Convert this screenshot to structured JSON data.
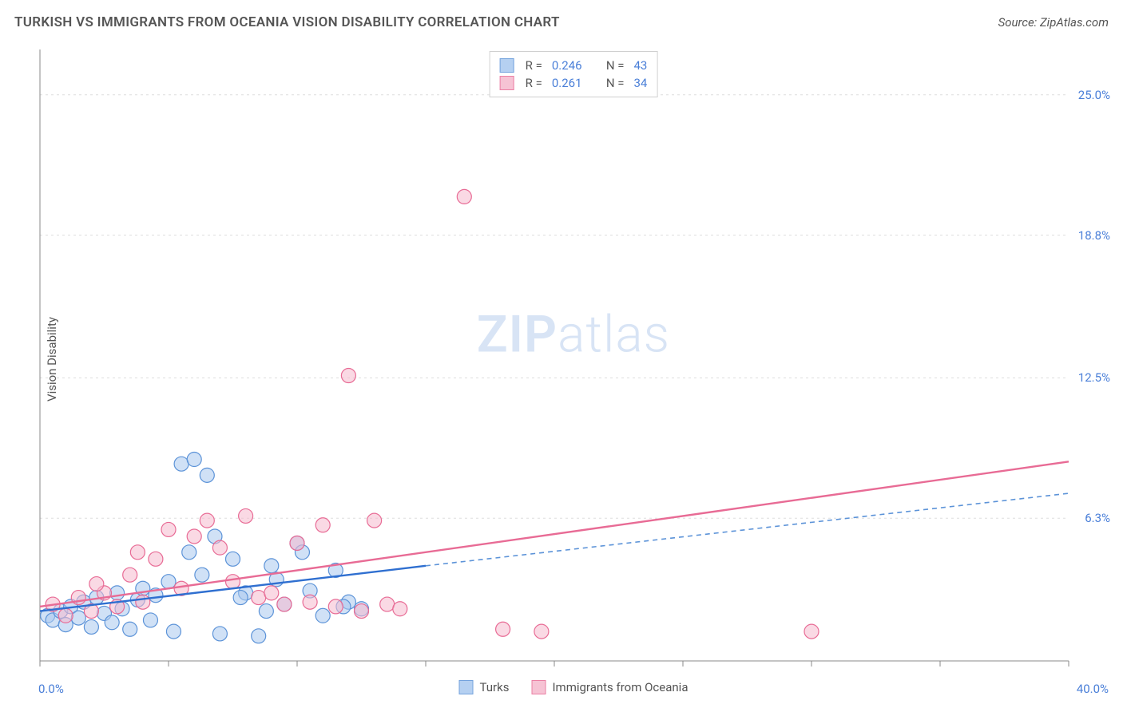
{
  "header": {
    "title": "TURKISH VS IMMIGRANTS FROM OCEANIA VISION DISABILITY CORRELATION CHART",
    "source": "Source: ZipAtlas.com"
  },
  "chart": {
    "type": "scatter",
    "ylabel": "Vision Disability",
    "watermark_zip": "ZIP",
    "watermark_atlas": "atlas",
    "background_color": "#ffffff",
    "grid_color": "#dddddd",
    "axis_color": "#888888",
    "tick_color": "#888888",
    "xlim": [
      0,
      40
    ],
    "ylim": [
      0,
      27
    ],
    "xtick_positions": [
      0,
      5,
      10,
      15,
      20,
      25,
      30,
      35,
      40
    ],
    "ytick_values": [
      6.3,
      12.5,
      18.8,
      25.0
    ],
    "ytick_labels": [
      "6.3%",
      "12.5%",
      "18.8%",
      "25.0%"
    ],
    "xaxis_left_label": "0.0%",
    "xaxis_right_label": "40.0%",
    "label_color": "#4a7fd8",
    "label_fontsize": 15,
    "series": {
      "turks": {
        "label": "Turks",
        "R": "0.246",
        "N": "43",
        "fill": "#a9c8ef",
        "stroke": "#5c93d8",
        "fill_opacity": 0.55,
        "marker_r": 9,
        "trend_solid": {
          "x1": 0,
          "y1": 2.2,
          "x2": 15,
          "y2": 4.2,
          "color": "#2f6fd0",
          "width": 2.4
        },
        "trend_dashed": {
          "x1": 15,
          "y1": 4.2,
          "x2": 40,
          "y2": 7.4,
          "color": "#5c93d8",
          "width": 1.6,
          "dash": "6,5"
        },
        "points": [
          [
            0.3,
            2.0
          ],
          [
            0.5,
            1.8
          ],
          [
            0.8,
            2.2
          ],
          [
            1.0,
            1.6
          ],
          [
            1.2,
            2.4
          ],
          [
            1.5,
            1.9
          ],
          [
            1.7,
            2.6
          ],
          [
            2.0,
            1.5
          ],
          [
            2.2,
            2.8
          ],
          [
            2.5,
            2.1
          ],
          [
            2.8,
            1.7
          ],
          [
            3.0,
            3.0
          ],
          [
            3.2,
            2.3
          ],
          [
            3.5,
            1.4
          ],
          [
            3.8,
            2.7
          ],
          [
            4.0,
            3.2
          ],
          [
            4.3,
            1.8
          ],
          [
            4.5,
            2.9
          ],
          [
            5.0,
            3.5
          ],
          [
            5.2,
            1.3
          ],
          [
            5.5,
            8.7
          ],
          [
            6.0,
            8.9
          ],
          [
            6.5,
            8.2
          ],
          [
            5.8,
            4.8
          ],
          [
            6.3,
            3.8
          ],
          [
            7.0,
            1.2
          ],
          [
            7.5,
            4.5
          ],
          [
            8.0,
            3.0
          ],
          [
            8.5,
            1.1
          ],
          [
            9.0,
            4.2
          ],
          [
            9.5,
            2.5
          ],
          [
            10.0,
            5.2
          ],
          [
            10.5,
            3.1
          ],
          [
            11.0,
            2.0
          ],
          [
            11.5,
            4.0
          ],
          [
            12.0,
            2.6
          ],
          [
            11.8,
            2.4
          ],
          [
            12.5,
            2.3
          ],
          [
            10.2,
            4.8
          ],
          [
            9.2,
            3.6
          ],
          [
            8.8,
            2.2
          ],
          [
            7.8,
            2.8
          ],
          [
            6.8,
            5.5
          ]
        ]
      },
      "oceania": {
        "label": "Immigrants from Oceania",
        "R": "0.261",
        "N": "34",
        "fill": "#f5b9cd",
        "stroke": "#e86b95",
        "fill_opacity": 0.55,
        "marker_r": 9,
        "trend_solid": {
          "x1": 0,
          "y1": 2.4,
          "x2": 40,
          "y2": 8.8,
          "color": "#e86b95",
          "width": 2.4
        },
        "points": [
          [
            0.5,
            2.5
          ],
          [
            1.0,
            2.0
          ],
          [
            1.5,
            2.8
          ],
          [
            2.0,
            2.2
          ],
          [
            2.5,
            3.0
          ],
          [
            3.0,
            2.4
          ],
          [
            3.5,
            3.8
          ],
          [
            4.0,
            2.6
          ],
          [
            4.5,
            4.5
          ],
          [
            5.0,
            5.8
          ],
          [
            5.5,
            3.2
          ],
          [
            6.0,
            5.5
          ],
          [
            6.5,
            6.2
          ],
          [
            7.0,
            5.0
          ],
          [
            7.5,
            3.5
          ],
          [
            8.0,
            6.4
          ],
          [
            8.5,
            2.8
          ],
          [
            9.0,
            3.0
          ],
          [
            9.5,
            2.5
          ],
          [
            10.0,
            5.2
          ],
          [
            10.5,
            2.6
          ],
          [
            11.0,
            6.0
          ],
          [
            11.5,
            2.4
          ],
          [
            12.0,
            12.6
          ],
          [
            12.5,
            2.2
          ],
          [
            13.0,
            6.2
          ],
          [
            13.5,
            2.5
          ],
          [
            14.0,
            2.3
          ],
          [
            16.5,
            20.5
          ],
          [
            18.0,
            1.4
          ],
          [
            19.5,
            1.3
          ],
          [
            30.0,
            1.3
          ],
          [
            3.8,
            4.8
          ],
          [
            2.2,
            3.4
          ]
        ]
      }
    },
    "legend_top": {
      "R_label": "R =",
      "N_label": "N ="
    }
  }
}
